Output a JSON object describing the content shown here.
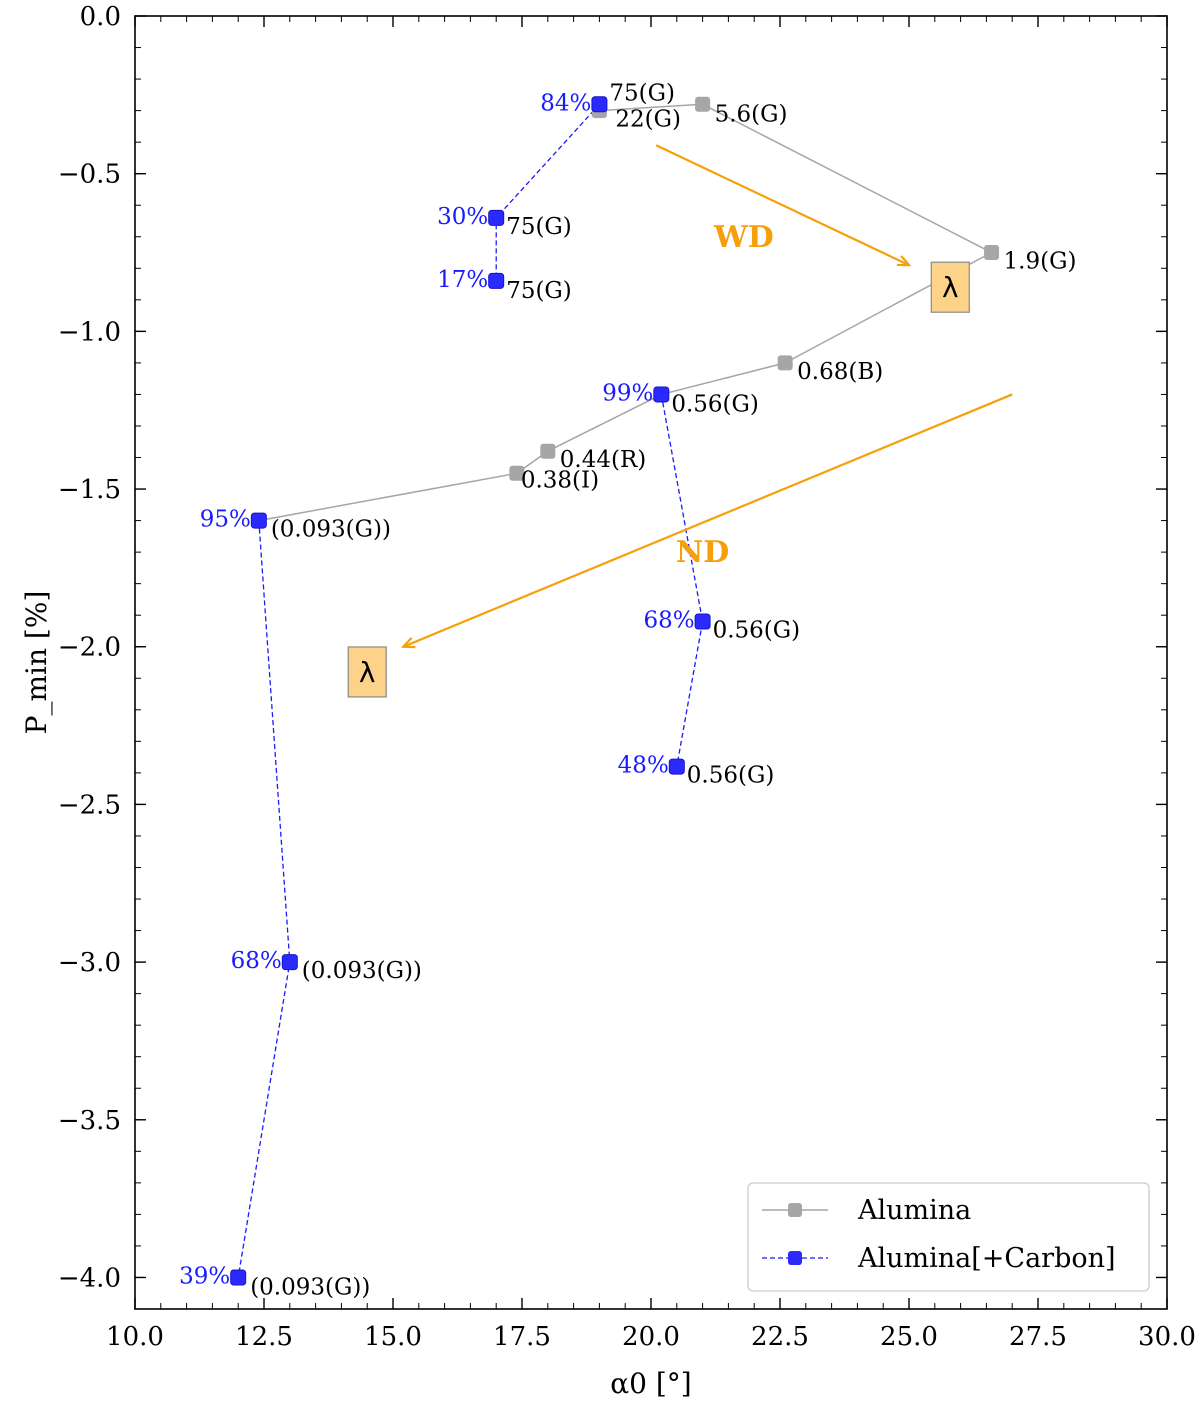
{
  "chart_data": {
    "type": "scatter",
    "title": "",
    "xlabel": "α0 [°]",
    "ylabel": "P_min [%]",
    "xlim": [
      10.0,
      30.0
    ],
    "ylim": [
      -4.1,
      0.0
    ],
    "xticks": [
      10.0,
      12.5,
      15.0,
      17.5,
      20.0,
      22.5,
      25.0,
      27.5,
      30.0
    ],
    "xtick_labels": [
      "10.0",
      "12.5",
      "15.0",
      "17.5",
      "20.0",
      "22.5",
      "25.0",
      "27.5",
      "30.0"
    ],
    "yticks": [
      0.0,
      -0.5,
      -1.0,
      -1.5,
      -2.0,
      -2.5,
      -3.0,
      -3.5,
      -4.0
    ],
    "ytick_labels": [
      "0.0",
      "−0.5",
      "−1.0",
      "−1.5",
      "−2.0",
      "−2.5",
      "−3.0",
      "−3.5",
      "−4.0"
    ],
    "series": [
      {
        "name": "Alumina",
        "color": "#a6a6a6",
        "line_style": "solid",
        "points": [
          {
            "x": 12.4,
            "y": -1.6,
            "label": "(0.093(G))"
          },
          {
            "x": 17.4,
            "y": -1.45,
            "label": "0.38(I)"
          },
          {
            "x": 18.0,
            "y": -1.38,
            "label": "0.44(R)"
          },
          {
            "x": 20.2,
            "y": -1.2,
            "label": "0.56(G)"
          },
          {
            "x": 22.6,
            "y": -1.1,
            "label": "0.68(B)"
          },
          {
            "x": 26.6,
            "y": -0.75,
            "label": "1.9(G)"
          },
          {
            "x": 21.0,
            "y": -0.28,
            "label": "5.6(G)"
          },
          {
            "x": 19.0,
            "y": -0.3,
            "label": "22(G)"
          }
        ]
      },
      {
        "name": "Alumina[+Carbon]",
        "color": "#1a1aff",
        "line_style": "dashed",
        "groups": [
          [
            {
              "x": 19.0,
              "y": -0.28,
              "label": "75(G)",
              "pct": "84%"
            },
            {
              "x": 17.0,
              "y": -0.64,
              "label": "75(G)",
              "pct": "30%"
            },
            {
              "x": 17.0,
              "y": -0.84,
              "label": "75(G)",
              "pct": "17%"
            }
          ],
          [
            {
              "x": 20.2,
              "y": -1.2,
              "label": "0.56(G)",
              "pct": "99%"
            },
            {
              "x": 21.0,
              "y": -1.92,
              "label": "0.56(G)",
              "pct": "68%"
            },
            {
              "x": 20.5,
              "y": -2.38,
              "label": "0.56(G)",
              "pct": "48%"
            }
          ],
          [
            {
              "x": 12.4,
              "y": -1.6,
              "label": "(0.093(G))",
              "pct": "95%"
            },
            {
              "x": 13.0,
              "y": -3.0,
              "label": "(0.093(G))",
              "pct": "68%"
            },
            {
              "x": 12.0,
              "y": -4.0,
              "label": "(0.093(G))",
              "pct": "39%"
            }
          ]
        ]
      }
    ],
    "annotations": [
      {
        "text": "WD",
        "color": "#f5a00a",
        "arrow_from": [
          20.1,
          -0.41
        ],
        "arrow_to": [
          25.0,
          -0.79
        ],
        "text_at": [
          21.8,
          -0.7
        ]
      },
      {
        "text": "ND",
        "color": "#f5a00a",
        "arrow_from": [
          27.0,
          -1.2
        ],
        "arrow_to": [
          15.2,
          -2.0
        ],
        "text_at": [
          21.0,
          -1.7
        ]
      },
      {
        "text": "λ",
        "box_color": "#fdd389",
        "at": [
          25.8,
          -0.86
        ]
      },
      {
        "text": "λ",
        "box_color": "#fdd389",
        "at": [
          14.5,
          -2.08
        ]
      }
    ],
    "legend": {
      "position": "bottom-right",
      "entries": [
        "Alumina",
        "Alumina[+Carbon]"
      ]
    },
    "grid": false
  }
}
